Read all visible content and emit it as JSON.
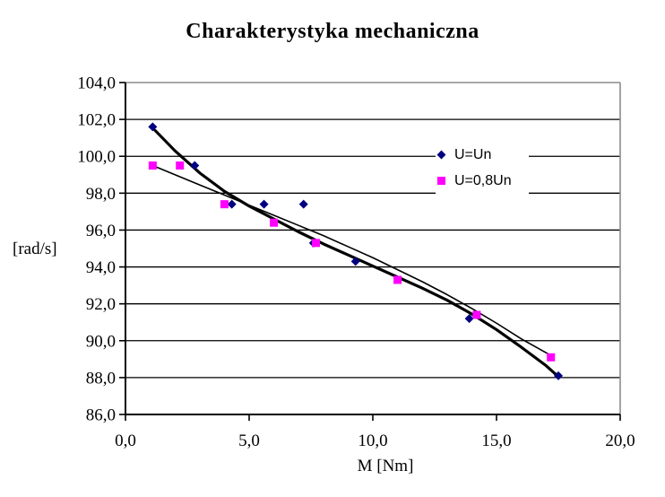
{
  "chart_data": {
    "type": "scatter",
    "title": "Charakterystyka mechaniczna",
    "xlabel": "M [Nm]",
    "ylabel": "[rad/s]",
    "xlim": [
      0,
      20
    ],
    "ylim": [
      86,
      104
    ],
    "grid": "horizontal",
    "background": "#FFFFFF",
    "colors": {
      "axis": "#000000",
      "grid": "#000000",
      "border": "#8c8c8c"
    },
    "x_ticks": [
      {
        "value": 0,
        "label": "0,0"
      },
      {
        "value": 5,
        "label": "5,0"
      },
      {
        "value": 10,
        "label": "10,0"
      },
      {
        "value": 15,
        "label": "15,0"
      },
      {
        "value": 20,
        "label": "20,0"
      }
    ],
    "y_ticks": [
      {
        "value": 86,
        "label": "86,0"
      },
      {
        "value": 88,
        "label": "88,0"
      },
      {
        "value": 90,
        "label": "90,0"
      },
      {
        "value": 92,
        "label": "92,0"
      },
      {
        "value": 94,
        "label": "94,0"
      },
      {
        "value": 96,
        "label": "96,0"
      },
      {
        "value": 98,
        "label": "98,0"
      },
      {
        "value": 100,
        "label": "100,0"
      },
      {
        "value": 102,
        "label": "102,0"
      },
      {
        "value": 104,
        "label": "104,0"
      }
    ],
    "legend": {
      "position": "inside-upper-right"
    },
    "series": [
      {
        "id": "u-un",
        "name": "U=Un",
        "marker": "diamond",
        "marker_color": "#000080",
        "points": [
          [
            1.1,
            101.6
          ],
          [
            2.8,
            99.5
          ],
          [
            4.3,
            97.4
          ],
          [
            5.6,
            97.4
          ],
          [
            7.2,
            97.4
          ],
          [
            7.6,
            95.3
          ],
          [
            9.3,
            94.3
          ],
          [
            13.9,
            91.2
          ],
          [
            17.5,
            88.1
          ]
        ],
        "trendline": {
          "color": "#000000",
          "width": 3.2,
          "points": [
            [
              1.2,
              101.4
            ],
            [
              2,
              100.3
            ],
            [
              3,
              99.1
            ],
            [
              4,
              98.1
            ],
            [
              5,
              97.3
            ],
            [
              6,
              96.6
            ],
            [
              7,
              95.9
            ],
            [
              8,
              95.25
            ],
            [
              9,
              94.65
            ],
            [
              10,
              94.05
            ],
            [
              11,
              93.45
            ],
            [
              12,
              92.85
            ],
            [
              13,
              92.2
            ],
            [
              14,
              91.45
            ],
            [
              15,
              90.6
            ],
            [
              16,
              89.65
            ],
            [
              17,
              88.65
            ],
            [
              17.5,
              88.05
            ]
          ]
        }
      },
      {
        "id": "u-08un",
        "name": "U=0,8Un",
        "marker": "square",
        "marker_color": "#FF00FF",
        "points": [
          [
            1.1,
            99.5
          ],
          [
            2.2,
            99.5
          ],
          [
            4.0,
            97.4
          ],
          [
            6.0,
            96.4
          ],
          [
            7.7,
            95.3
          ],
          [
            11.0,
            93.3
          ],
          [
            14.2,
            91.4
          ],
          [
            17.2,
            89.1
          ]
        ],
        "trendline": {
          "color": "#000000",
          "width": 1.6,
          "points": [
            [
              1.1,
              99.5
            ],
            [
              2,
              99.0
            ],
            [
              3,
              98.45
            ],
            [
              4,
              97.9
            ],
            [
              5,
              97.35
            ],
            [
              6,
              96.8
            ],
            [
              7,
              96.25
            ],
            [
              8,
              95.7
            ],
            [
              9,
              95.1
            ],
            [
              10,
              94.5
            ],
            [
              11,
              93.85
            ],
            [
              12,
              93.2
            ],
            [
              13,
              92.5
            ],
            [
              14,
              91.75
            ],
            [
              15,
              90.95
            ],
            [
              16,
              90.1
            ],
            [
              17.2,
              89.2
            ]
          ]
        }
      }
    ]
  }
}
